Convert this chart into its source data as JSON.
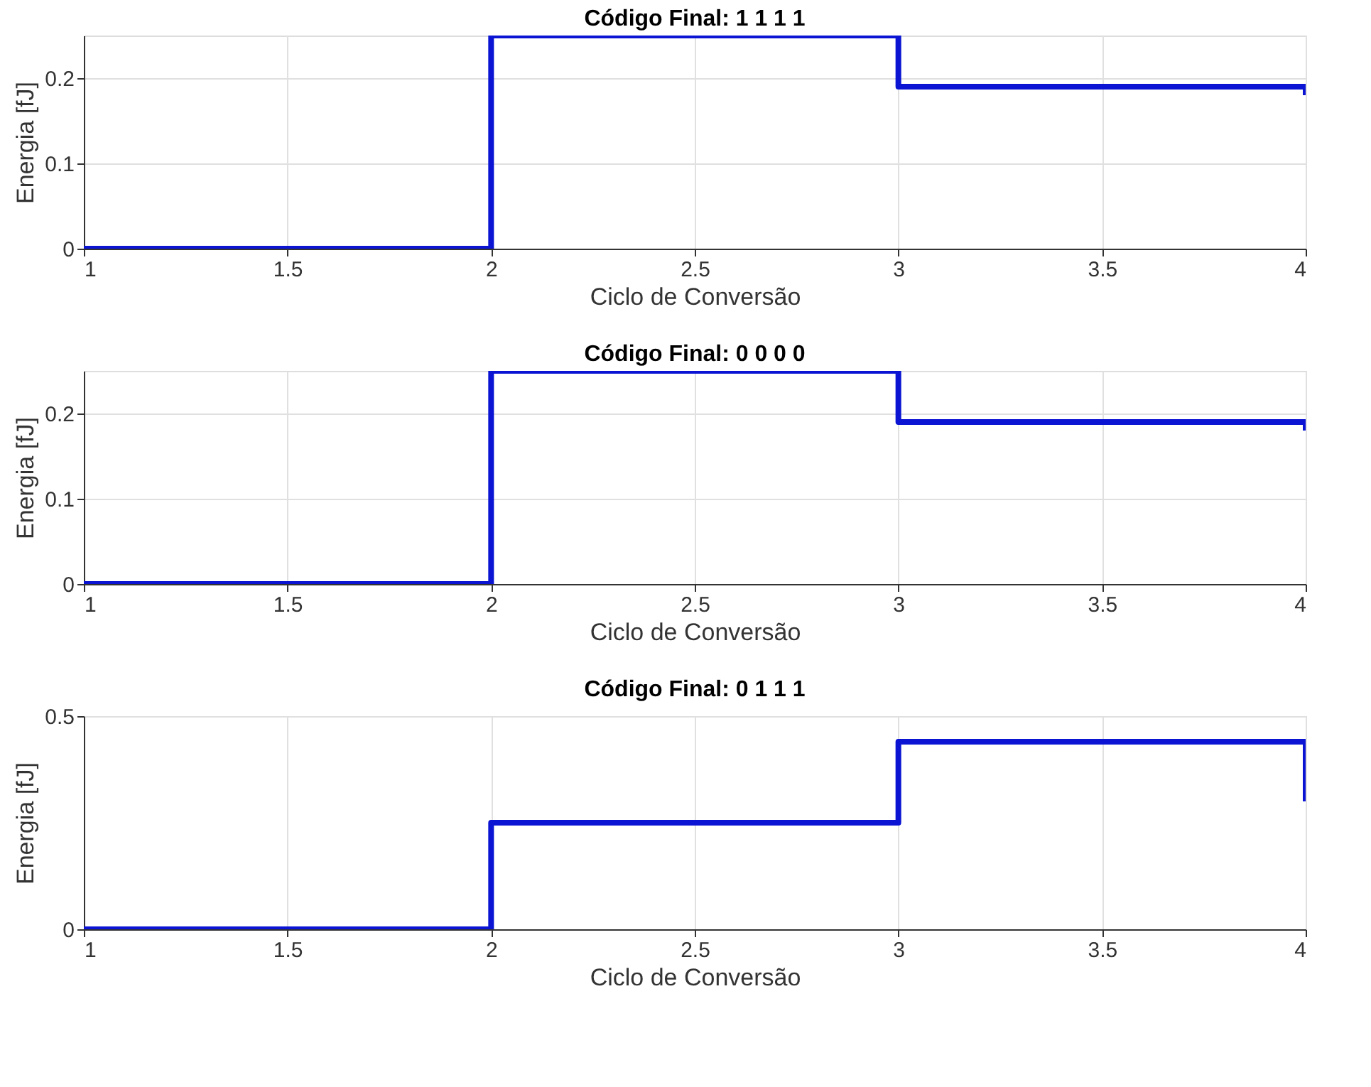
{
  "chart_data": [
    {
      "type": "step",
      "title": "Código Final: 1  1  1  1",
      "xlabel": "Ciclo de Conversão",
      "ylabel": "Energia [fJ]",
      "x": [
        1,
        2,
        3,
        4
      ],
      "xlim": [
        1,
        4
      ],
      "xticks": [
        1,
        1.5,
        2,
        2.5,
        3,
        3.5,
        4
      ],
      "ylim": [
        0,
        0.25
      ],
      "yticks": [
        0,
        0.1,
        0.2
      ],
      "grid": true,
      "line_style": "solid",
      "series": [
        {
          "color": "#0a14d2",
          "values": [
            0,
            0.25,
            0.19,
            0.18
          ]
        }
      ]
    },
    {
      "type": "step",
      "title": "Código Final: 0  0  0  0",
      "xlabel": "Ciclo de Conversão",
      "ylabel": "Energia [fJ]",
      "x": [
        1,
        2,
        3,
        4
      ],
      "xlim": [
        1,
        4
      ],
      "xticks": [
        1,
        1.5,
        2,
        2.5,
        3,
        3.5,
        4
      ],
      "ylim": [
        0,
        0.25
      ],
      "yticks": [
        0,
        0.1,
        0.2
      ],
      "grid": true,
      "line_style": "solid",
      "series": [
        {
          "color": "#0a14d2",
          "values": [
            0,
            0.25,
            0.19,
            0.18
          ]
        }
      ]
    },
    {
      "type": "step",
      "title": "Código Final: 0  1  1  1",
      "xlabel": "Ciclo de Conversão",
      "ylabel": "Energia [fJ]",
      "x": [
        1,
        2,
        3,
        4
      ],
      "xlim": [
        1,
        4
      ],
      "xticks": [
        1,
        1.5,
        2,
        2.5,
        3,
        3.5,
        4
      ],
      "ylim": [
        0,
        0.5
      ],
      "yticks": [
        0,
        0.5
      ],
      "grid": true,
      "line_style": "solid",
      "series": [
        {
          "color": "#0a14d2",
          "values": [
            0,
            0.25,
            0.44,
            0.3
          ]
        }
      ]
    }
  ]
}
